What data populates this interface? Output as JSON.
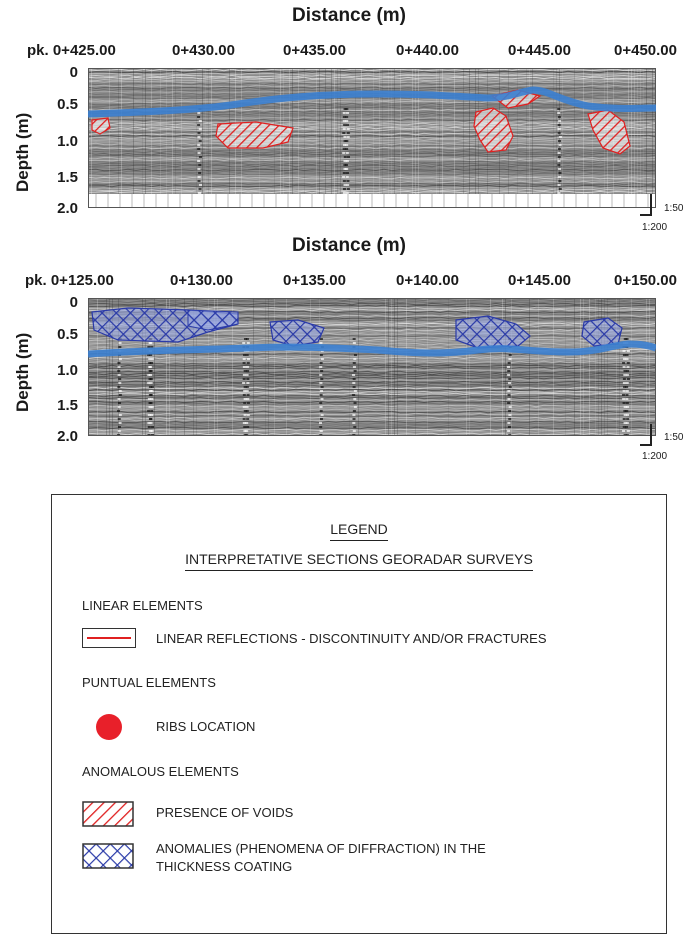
{
  "sections": [
    {
      "id": "section-1",
      "x_title": "Distance (m)",
      "y_title": "Depth (m)",
      "x_ticks": [
        "pk. 0+425.00",
        "0+430.00",
        "0+435.00",
        "0+440.00",
        "0+445.00",
        "0+450.00"
      ],
      "y_ticks": [
        "0",
        "0.5",
        "1.0",
        "1.5",
        "2.0"
      ],
      "scale_v": "1:50",
      "scale_h": "1:200"
    },
    {
      "id": "section-2",
      "x_title": "Distance (m)",
      "y_title": "Depth (m)",
      "x_ticks": [
        "pk. 0+125.00",
        "0+130.00",
        "0+135.00",
        "0+140.00",
        "0+145.00",
        "0+150.00"
      ],
      "y_ticks": [
        "0",
        "0.5",
        "1.0",
        "1.5",
        "2.0"
      ],
      "scale_v": "1:50",
      "scale_h": "1:200"
    }
  ],
  "legend": {
    "title": "LEGEND",
    "subtitle": "INTERPRETATIVE SECTIONS GEORADAR SURVEYS",
    "linear_heading": "LINEAR ELEMENTS",
    "linear_item": "LINEAR REFLECTIONS - DISCONTINUITY AND/OR FRACTURES",
    "puntual_heading": "PUNTUAL ELEMENTS",
    "puntual_item": "RIBS LOCATION",
    "anomalous_heading": "ANOMALOUS ELEMENTS",
    "voids_item": "PRESENCE OF VOIDS",
    "anomalies_item_line1": "ANOMALIES (PHENOMENA OF DIFFRACTION) IN THE",
    "anomalies_item_line2": "THICKNESS COATING"
  },
  "colors": {
    "interface_line": "#3b7fd0",
    "voids": "#e02020",
    "anomalies": "#2a3aa8",
    "ribs": "#e8202a"
  }
}
